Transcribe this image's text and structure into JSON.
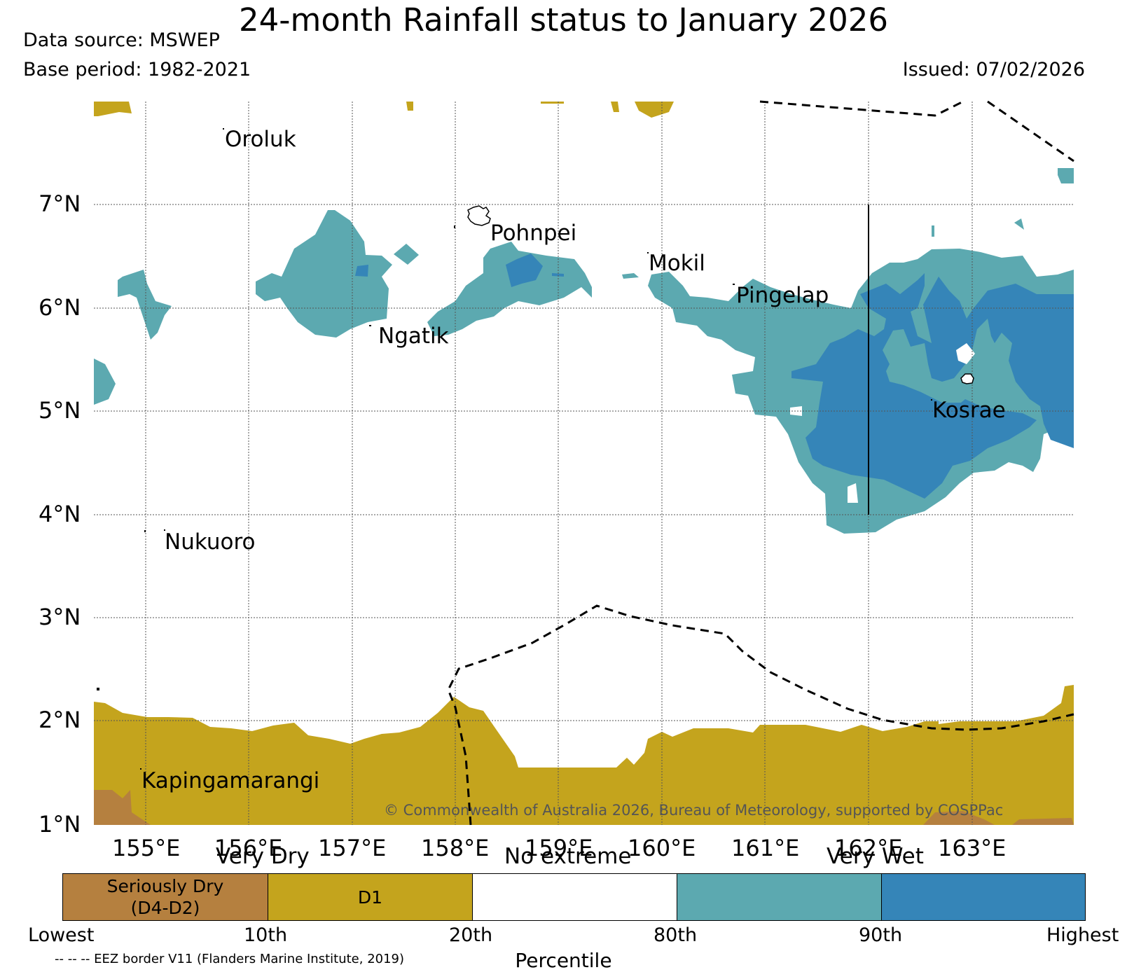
{
  "header": {
    "title": "24-month Rainfall status to January 2026",
    "data_source": "Data source: MSWEP",
    "base_period": "Base period: 1982-2021",
    "issued": "Issued: 07/02/2026"
  },
  "map": {
    "lat_labels": [
      "7°N",
      "6°N",
      "5°N",
      "4°N",
      "3°N",
      "2°N",
      "1°N"
    ],
    "lon_labels": [
      "155°E",
      "156°E",
      "157°E",
      "158°E",
      "159°E",
      "160°E",
      "161°E",
      "162°E",
      "163°E"
    ],
    "places": [
      "Oroluk",
      "Pohnpei",
      "Mokil",
      "Pingelap",
      "Ngatik",
      "Kosrae",
      "Nukuoro",
      "Kapingamarangi"
    ],
    "copyright": "© Commonwealth of Australia 2026, Bureau of Meteorology, supported by COSPPac",
    "colors": {
      "seriously_dry": "#b5803f",
      "dry_d1": "#c4a41d",
      "very_wet": "#5ca9b0",
      "highest_wet": "#3585b8",
      "eez": "#000000"
    }
  },
  "legend": {
    "categories": [
      "Very Dry",
      "No extreme",
      "Very Wet"
    ],
    "boxes": [
      {
        "label": "Seriously Dry\n(D4-D2)",
        "color": "#b5803f"
      },
      {
        "label": "D1",
        "color": "#c4a41d"
      },
      {
        "label": "",
        "color": "#ffffff"
      },
      {
        "label": "",
        "color": "#5ca9b0"
      },
      {
        "label": "",
        "color": "#3585b8"
      }
    ],
    "percentiles": [
      "Lowest",
      "10th",
      "20th",
      "80th",
      "90th",
      "Highest"
    ],
    "percentile_label": "Percentile",
    "eez_note": "-- -- -- EEZ border V11 (Flanders Marine Institute, 2019)"
  }
}
